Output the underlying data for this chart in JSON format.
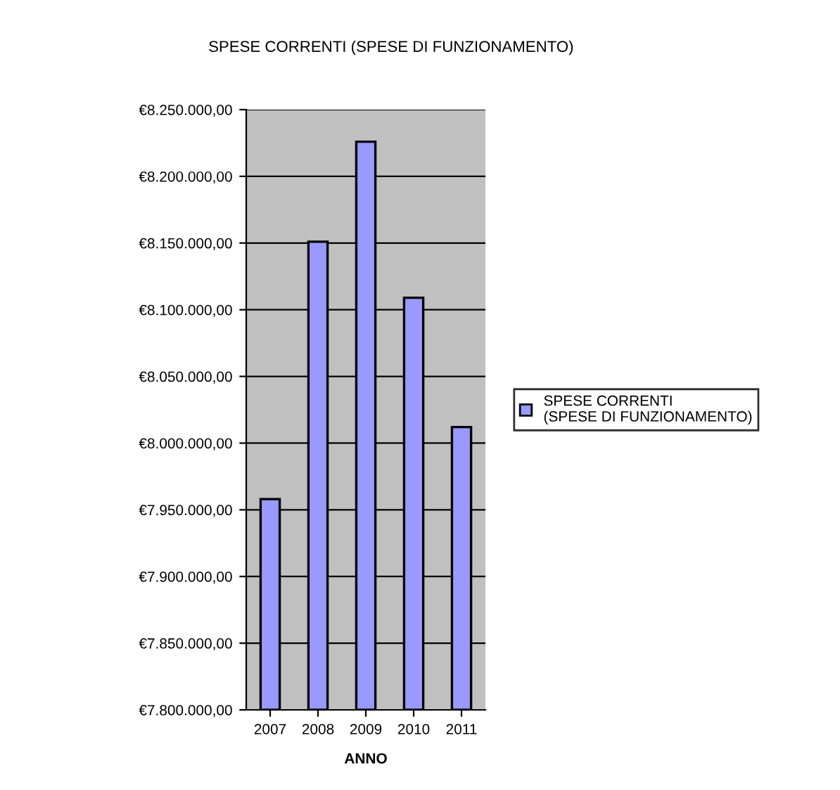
{
  "chart_data": {
    "type": "bar",
    "title": "SPESE CORRENTI (SPESE DI FUNZIONAMENTO)",
    "xlabel": "ANNO",
    "categories": [
      "2007",
      "2008",
      "2009",
      "2010",
      "2011"
    ],
    "series": [
      {
        "name": "SPESE CORRENTI (SPESE DI FUNZIONAMENTO)",
        "color": "#9999ff",
        "values": [
          7958000,
          8151000,
          8226000,
          8109000,
          8012000
        ]
      }
    ],
    "ylim": [
      7800000,
      8250000
    ],
    "yticks": [
      {
        "value": 7800000,
        "label": "€7.800.000,00"
      },
      {
        "value": 7850000,
        "label": "€7.850.000,00"
      },
      {
        "value": 7900000,
        "label": "€7.900.000,00"
      },
      {
        "value": 7950000,
        "label": "€7.950.000,00"
      },
      {
        "value": 8000000,
        "label": "€8.000.000,00"
      },
      {
        "value": 8050000,
        "label": "€8.050.000,00"
      },
      {
        "value": 8100000,
        "label": "€8.100.000,00"
      },
      {
        "value": 8150000,
        "label": "€8.150.000,00"
      },
      {
        "value": 8200000,
        "label": "€8.200.000,00"
      },
      {
        "value": 8250000,
        "label": "€8.250.000,00"
      }
    ],
    "grid": "y",
    "legend": "right"
  }
}
